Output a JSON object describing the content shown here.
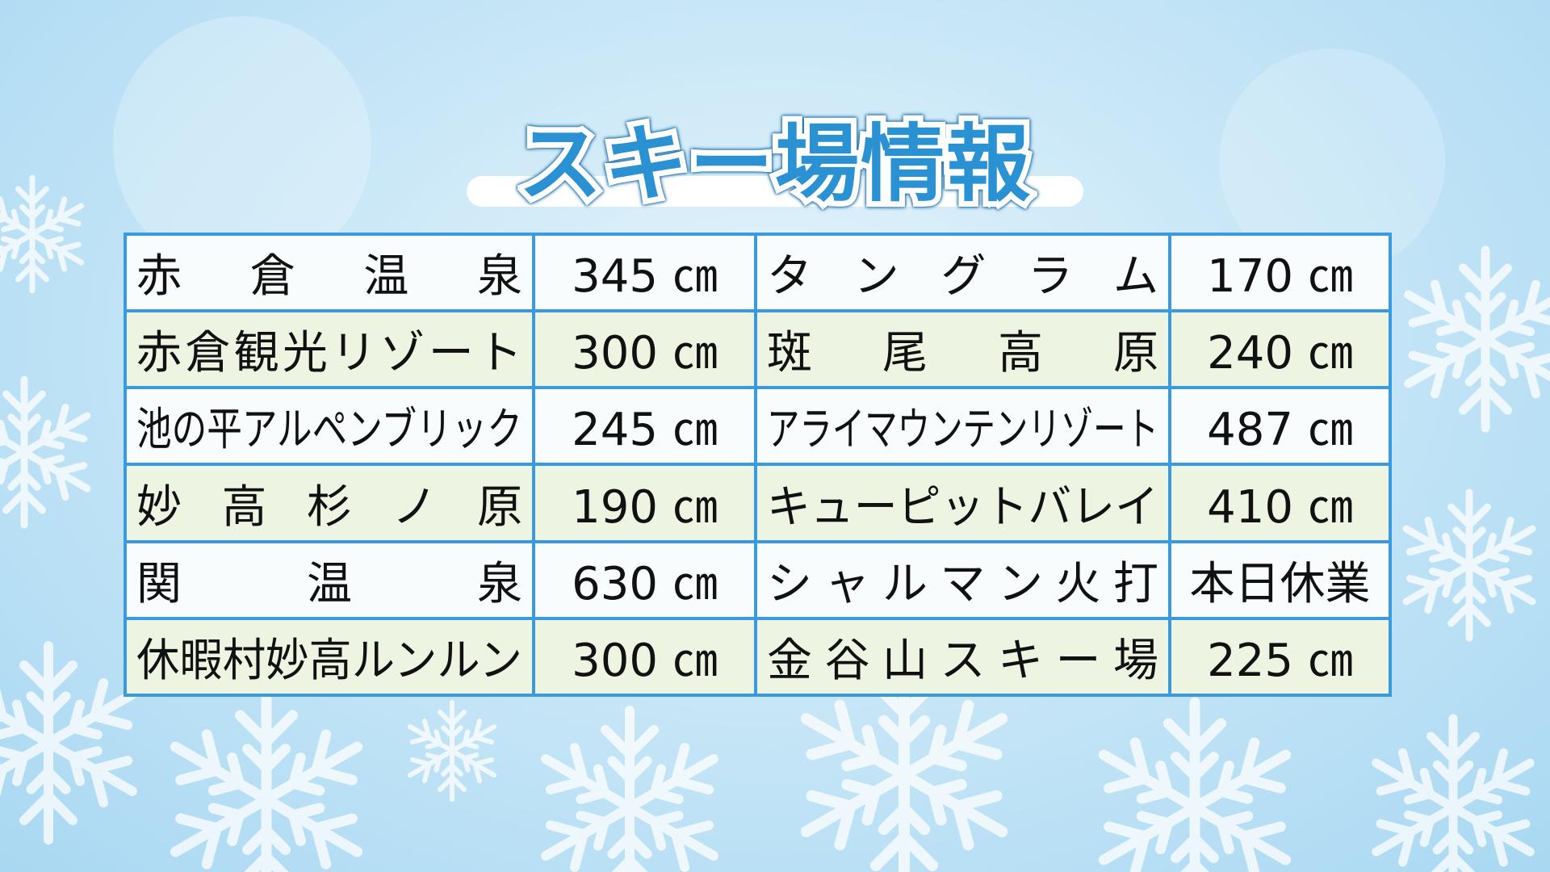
{
  "title": "スキー場情報",
  "table": {
    "rows": [
      [
        "赤倉温泉",
        "345 ㎝",
        "タングラム",
        "170 ㎝"
      ],
      [
        "赤倉観光リゾート",
        "300 ㎝",
        "斑尾高原",
        "240 ㎝"
      ],
      [
        "池の平アルペンブリック",
        "245 ㎝",
        "アライマウンテンリゾート",
        "487 ㎝"
      ],
      [
        "妙高杉ノ原",
        "190 ㎝",
        "キューピットバレイ",
        "410 ㎝"
      ],
      [
        "関温泉",
        "630 ㎝",
        "シャルマン火打",
        "本日休業"
      ],
      [
        "休暇村妙高ルンルン",
        "300 ㎝",
        "金谷山スキー場",
        "225 ㎝"
      ]
    ]
  }
}
